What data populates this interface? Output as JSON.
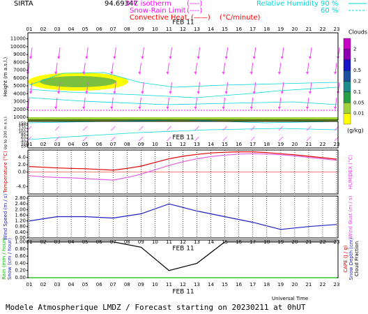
{
  "header": {
    "station": "SIRTA",
    "coordinate": "94.69347",
    "legend": [
      {
        "label": "0°C isotherm",
        "symbol": "(----)",
        "color": "#ff00ff"
      },
      {
        "label": "Snow-Rain Limit",
        "symbol": "(----)",
        "color": "#ff00ff"
      },
      {
        "label": "Convective Heat.",
        "symbol": "(——)",
        "color": "#ff0000",
        "unit": "(°C/minute)"
      }
    ],
    "humidity": {
      "label": "Relative Humidity",
      "levels": [
        "90 %",
        "60 %"
      ],
      "color": "#00d8d8"
    }
  },
  "chart_data": [
    {
      "type": "contour",
      "date": "FEB 11",
      "categories": [
        "01",
        "02",
        "03",
        "04",
        "05",
        "06",
        "07",
        "08",
        "09",
        "10",
        "11",
        "12",
        "13",
        "14",
        "15",
        "16",
        "17",
        "18",
        "19",
        "20",
        "21",
        "22",
        "23"
      ],
      "y_label": "Height (m a.s.l.)",
      "ylim": [
        1000,
        11500
      ],
      "yticks": [
        1000,
        2000,
        3000,
        4000,
        5000,
        6000,
        7000,
        8000,
        9000,
        10000,
        11000
      ],
      "low_label": "Up to 200 m a.s.l.",
      "low_ylim": [
        10,
        150
      ],
      "low_yticks": [
        10,
        20,
        40,
        60,
        80,
        100,
        120,
        140,
        150
      ],
      "colorbar": {
        "title": "Clouds",
        "unit": "(g/kg)",
        "levels": [
          2,
          1,
          0.5,
          0.2,
          0.1,
          0.05,
          0.01
        ],
        "colors": [
          "#c800c8",
          "#8c00b4",
          "#1414c8",
          "#1e50a0",
          "#1e8c8c",
          "#28a046",
          "#a0d23c",
          "#ffff00"
        ]
      }
    },
    {
      "type": "line",
      "y_label": "Temperature (°C)",
      "y2_label": "HUMIDEX (°C)",
      "y_label_color": "#e00000",
      "y2_label_color": "#e040e0",
      "ylim": [
        -6,
        6
      ],
      "yticks": [
        {
          "value": -4,
          "label": "-4.0"
        },
        {
          "value": 0,
          "label": "0.0"
        },
        {
          "value": 2,
          "label": "2.0"
        },
        {
          "value": 4,
          "label": "4.0"
        }
      ],
      "series": [
        {
          "color": "#e00000",
          "values": [
            1.5,
            1.3,
            1.1,
            1.0,
            0.9,
            0.7,
            0.5,
            1.0,
            1.6,
            2.6,
            3.6,
            4.3,
            4.8,
            5.2,
            5.4,
            5.5,
            5.5,
            5.3,
            5.0,
            4.7,
            4.3,
            3.9,
            3.5
          ]
        },
        {
          "color": "#e060e0",
          "values": [
            -1.0,
            -1.3,
            -1.5,
            -1.6,
            -1.8,
            -2.0,
            -2.2,
            -1.5,
            -0.6,
            0.6,
            1.8,
            2.8,
            3.6,
            4.2,
            4.6,
            4.9,
            5.0,
            4.9,
            4.7,
            4.4,
            4.0,
            3.6,
            3.2
          ]
        }
      ]
    },
    {
      "type": "line",
      "y_label": "Wind Speed (m / s)",
      "y2_label": "Wind Gust (m / s)",
      "y_label_color": "#2020c0",
      "y2_label_color": "#e040e0",
      "ylim": [
        0,
        2.95
      ],
      "yticks": [
        {
          "value": 0,
          "label": "0.00"
        },
        {
          "value": 0.4,
          "label": "0.40"
        },
        {
          "value": 0.8,
          "label": "0.80"
        },
        {
          "value": 1.2,
          "label": "1.20"
        },
        {
          "value": 1.6,
          "label": "1.60"
        },
        {
          "value": 2.0,
          "label": "2.00"
        },
        {
          "value": 2.4,
          "label": "2.40"
        },
        {
          "value": 2.8,
          "label": "2.80"
        }
      ],
      "series": [
        {
          "color": "#2020c0",
          "x": [
            1,
            3,
            5,
            7,
            9,
            11,
            13,
            15,
            17,
            19,
            21,
            23
          ],
          "values": [
            1.2,
            1.5,
            1.5,
            1.4,
            1.7,
            2.4,
            1.9,
            1.5,
            1.1,
            0.6,
            0.8,
            0.95
          ]
        }
      ]
    },
    {
      "type": "line",
      "y_label": "Rain (mm / hour)",
      "y_label_color": "#00c000",
      "y_label_b": "Snow (cm / hour)",
      "y_label_b_color": "#2020c0",
      "y2_labels": [
        {
          "text": "CAPE (J / g)",
          "color": "#e00000"
        },
        {
          "text": "Snow Depth (cm)",
          "color": "#2020c0"
        },
        {
          "text": "Cloud Fraction",
          "color": "#000000"
        }
      ],
      "ylim": [
        0,
        1.05
      ],
      "yticks": [
        {
          "value": 0,
          "label": "0.00"
        },
        {
          "value": 0.2,
          "label": "0.20"
        },
        {
          "value": 0.4,
          "label": "0.40"
        },
        {
          "value": 0.6,
          "label": "0.60"
        },
        {
          "value": 0.8,
          "label": "0.80"
        },
        {
          "value": 1.0,
          "label": "1.00"
        }
      ],
      "series": [
        {
          "color": "#000000",
          "x": [
            1,
            3,
            5,
            7,
            9,
            11,
            13,
            15,
            17,
            19,
            21,
            23
          ],
          "values": [
            1,
            1,
            1,
            1,
            0.85,
            0.2,
            0.4,
            1,
            1,
            1,
            1,
            1
          ]
        },
        {
          "color": "#00c000",
          "x": [
            1,
            3,
            5,
            7,
            9,
            11,
            13,
            15,
            17,
            19,
            21,
            23
          ],
          "values": [
            0,
            0,
            0,
            0,
            0,
            0,
            0,
            0,
            0,
            0,
            0,
            0
          ]
        }
      ]
    }
  ],
  "footer": {
    "x_label": "Universal Time",
    "title": "Modele Atmospherique LMDZ / Forecast starting on 20230211 at 0hUT"
  }
}
